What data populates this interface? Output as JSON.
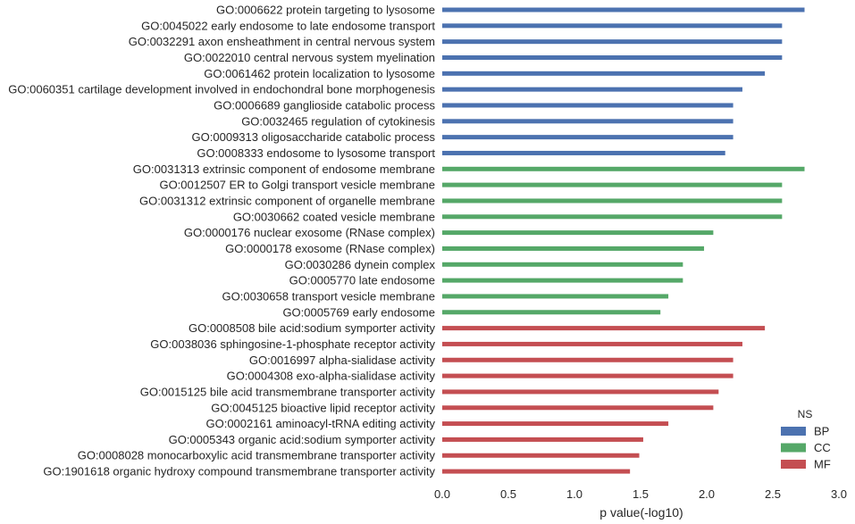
{
  "chart_data": {
    "type": "bar",
    "orientation": "horizontal",
    "xlabel": "p value(-log10)",
    "xlim": [
      0.0,
      3.0
    ],
    "xticks": [
      "0.0",
      "0.5",
      "1.0",
      "1.5",
      "2.0",
      "2.5",
      "3.0"
    ],
    "grid": false,
    "legend": {
      "title": "NS",
      "placement": "bottom-right",
      "entries": [
        {
          "name": "BP",
          "color": "#4c72b0"
        },
        {
          "name": "CC",
          "color": "#55a868"
        },
        {
          "name": "MF",
          "color": "#c44e52"
        }
      ]
    },
    "categories": [
      {
        "label": "GO:0006622 protein targeting to lysosome",
        "ns": "BP",
        "value": 2.74
      },
      {
        "label": "GO:0045022 early endosome to late endosome transport",
        "ns": "BP",
        "value": 2.57
      },
      {
        "label": "GO:0032291 axon ensheathment in central nervous system",
        "ns": "BP",
        "value": 2.57
      },
      {
        "label": "GO:0022010 central nervous system myelination",
        "ns": "BP",
        "value": 2.57
      },
      {
        "label": "GO:0061462 protein localization to lysosome",
        "ns": "BP",
        "value": 2.44
      },
      {
        "label": "GO:0060351 cartilage development involved in endochondral bone morphogenesis",
        "ns": "BP",
        "value": 2.27
      },
      {
        "label": "GO:0006689 ganglioside catabolic process",
        "ns": "BP",
        "value": 2.2
      },
      {
        "label": "GO:0032465 regulation of cytokinesis",
        "ns": "BP",
        "value": 2.2
      },
      {
        "label": "GO:0009313 oligosaccharide catabolic process",
        "ns": "BP",
        "value": 2.2
      },
      {
        "label": "GO:0008333 endosome to lysosome transport",
        "ns": "BP",
        "value": 2.14
      },
      {
        "label": "GO:0031313 extrinsic component of endosome membrane",
        "ns": "CC",
        "value": 2.74
      },
      {
        "label": "GO:0012507 ER to Golgi transport vesicle membrane",
        "ns": "CC",
        "value": 2.57
      },
      {
        "label": "GO:0031312 extrinsic component of organelle membrane",
        "ns": "CC",
        "value": 2.57
      },
      {
        "label": "GO:0030662 coated vesicle membrane",
        "ns": "CC",
        "value": 2.57
      },
      {
        "label": "GO:0000176 nuclear exosome (RNase complex)",
        "ns": "CC",
        "value": 2.05
      },
      {
        "label": "GO:0000178 exosome (RNase complex)",
        "ns": "CC",
        "value": 1.98
      },
      {
        "label": "GO:0030286 dynein complex",
        "ns": "CC",
        "value": 1.82
      },
      {
        "label": "GO:0005770 late endosome",
        "ns": "CC",
        "value": 1.82
      },
      {
        "label": "GO:0030658 transport vesicle membrane",
        "ns": "CC",
        "value": 1.71
      },
      {
        "label": "GO:0005769 early endosome",
        "ns": "CC",
        "value": 1.65
      },
      {
        "label": "GO:0008508 bile acid:sodium symporter activity",
        "ns": "MF",
        "value": 2.44
      },
      {
        "label": "GO:0038036 sphingosine-1-phosphate receptor activity",
        "ns": "MF",
        "value": 2.27
      },
      {
        "label": "GO:0016997 alpha-sialidase activity",
        "ns": "MF",
        "value": 2.2
      },
      {
        "label": "GO:0004308 exo-alpha-sialidase activity",
        "ns": "MF",
        "value": 2.2
      },
      {
        "label": "GO:0015125 bile acid transmembrane transporter activity",
        "ns": "MF",
        "value": 2.09
      },
      {
        "label": "GO:0045125 bioactive lipid receptor activity",
        "ns": "MF",
        "value": 2.05
      },
      {
        "label": "GO:0002161 aminoacyl-tRNA editing activity",
        "ns": "MF",
        "value": 1.71
      },
      {
        "label": "GO:0005343 organic acid:sodium symporter activity",
        "ns": "MF",
        "value": 1.52
      },
      {
        "label": "GO:0008028 monocarboxylic acid transmembrane transporter activity",
        "ns": "MF",
        "value": 1.49
      },
      {
        "label": "GO:1901618 organic hydroxy compound transmembrane transporter activity",
        "ns": "MF",
        "value": 1.42
      }
    ]
  }
}
